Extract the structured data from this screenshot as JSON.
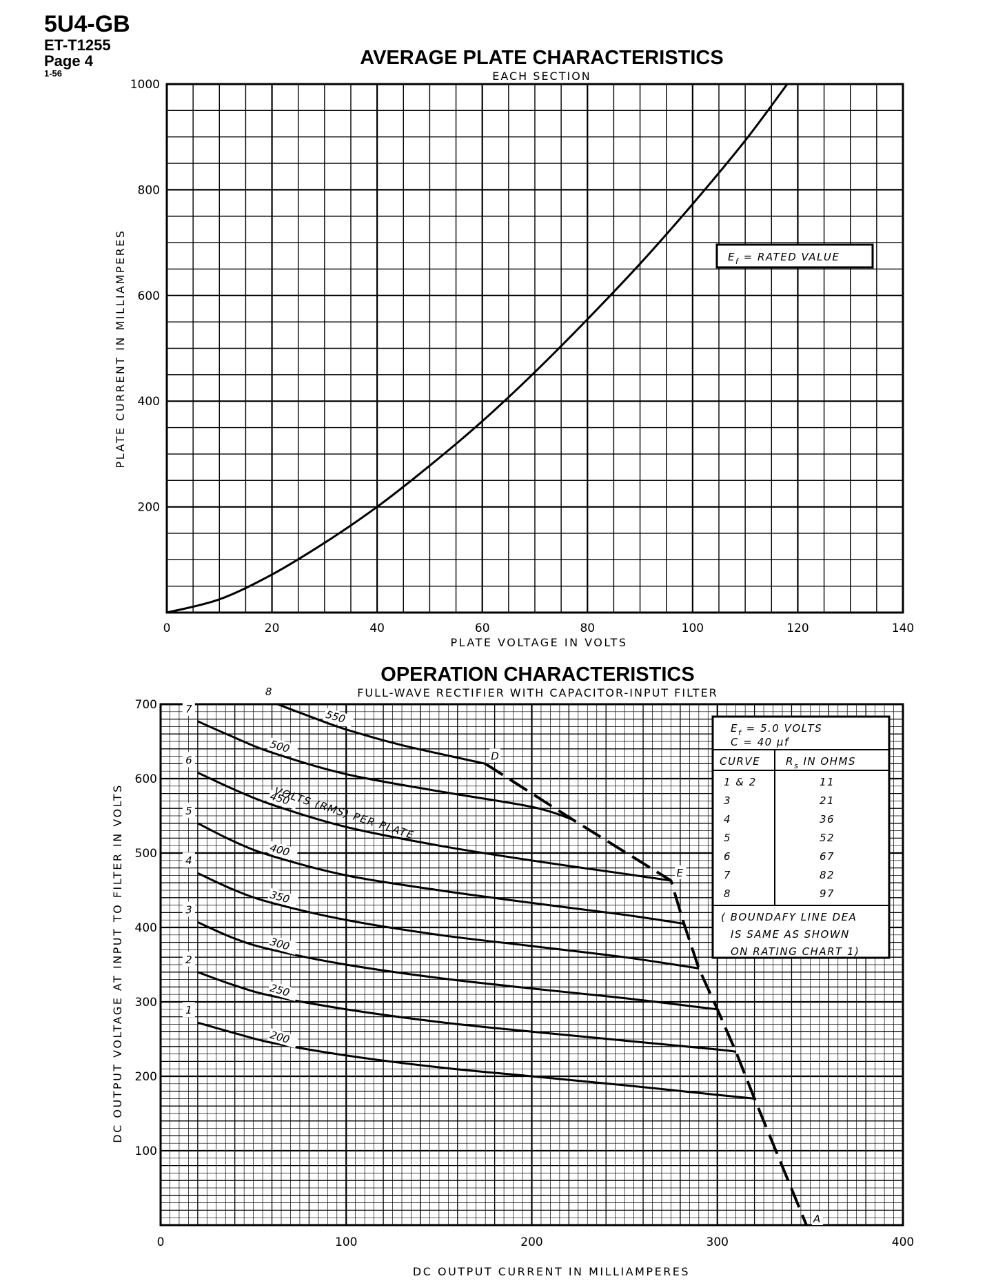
{
  "header": {
    "model": "5U4-GB",
    "code": "ET-T1255",
    "page": "Page 4",
    "date": "1-56"
  },
  "chart_data": [
    {
      "type": "line",
      "title": "AVERAGE PLATE CHARACTERISTICS",
      "subtitle": "EACH SECTION",
      "xlabel": "PLATE VOLTAGE IN VOLTS",
      "ylabel": "PLATE CURRENT IN MILLIAMPERES",
      "xlim": [
        0,
        140
      ],
      "ylim": [
        0,
        1000
      ],
      "xticks": [
        0,
        20,
        40,
        60,
        80,
        100,
        120,
        140
      ],
      "yticks": [
        200,
        400,
        600,
        800,
        1000
      ],
      "grid": true,
      "annotation": {
        "sym": "E",
        "sub": "f",
        "text": " = RATED VALUE"
      },
      "series": [
        {
          "name": "plate-current",
          "x": [
            0,
            10,
            20,
            30,
            40,
            50,
            60,
            70,
            80,
            90,
            100,
            110,
            118
          ],
          "y": [
            0,
            25,
            72,
            132,
            200,
            278,
            362,
            455,
            555,
            660,
            773,
            893,
            1000
          ]
        }
      ]
    },
    {
      "type": "line",
      "title": "OPERATION CHARACTERISTICS",
      "subtitle": "FULL-WAVE RECTIFIER WITH CAPACITOR-INPUT FILTER",
      "xlabel": "DC OUTPUT CURRENT IN MILLIAMPERES",
      "ylabel": "DC OUTPUT VOLTAGE AT INPUT TO FILTER IN VOLTS",
      "xlim": [
        0,
        400
      ],
      "ylim": [
        0,
        700
      ],
      "xticks": [
        0,
        100,
        200,
        300,
        400
      ],
      "yticks": [
        100,
        200,
        300,
        400,
        500,
        600,
        700
      ],
      "grid": true,
      "series": [
        {
          "name": "1",
          "rms_label": "200",
          "x": [
            20,
            40,
            60,
            100,
            150,
            200,
            250,
            300,
            320
          ],
          "y": [
            272,
            258,
            245,
            228,
            212,
            200,
            188,
            175,
            170
          ]
        },
        {
          "name": "2",
          "rms_label": "250",
          "x": [
            20,
            40,
            60,
            100,
            150,
            200,
            250,
            300,
            310
          ],
          "y": [
            340,
            322,
            308,
            290,
            273,
            260,
            248,
            236,
            233
          ]
        },
        {
          "name": "3",
          "rms_label": "300",
          "x": [
            20,
            40,
            60,
            100,
            150,
            200,
            250,
            290,
            300
          ],
          "y": [
            407,
            385,
            370,
            350,
            332,
            318,
            305,
            293,
            290
          ]
        },
        {
          "name": "4",
          "rms_label": "350",
          "x": [
            20,
            40,
            60,
            100,
            150,
            200,
            250,
            290
          ],
          "y": [
            473,
            450,
            433,
            410,
            390,
            375,
            360,
            345
          ]
        },
        {
          "name": "5",
          "rms_label": "400",
          "x": [
            20,
            40,
            60,
            100,
            150,
            200,
            250,
            282
          ],
          "y": [
            540,
            515,
            496,
            470,
            450,
            433,
            417,
            405
          ]
        },
        {
          "name": "6",
          "rms_label": "450",
          "x": [
            20,
            40,
            60,
            100,
            150,
            200,
            250,
            275
          ],
          "y": [
            608,
            585,
            565,
            535,
            510,
            490,
            472,
            463
          ]
        },
        {
          "name": "7",
          "rms_label": "500",
          "x": [
            20,
            40,
            60,
            100,
            150,
            200,
            222
          ],
          "y": [
            677,
            655,
            635,
            606,
            583,
            562,
            545
          ]
        },
        {
          "name": "8",
          "rms_label": "550",
          "x": [
            63,
            80,
            100,
            130,
            175
          ],
          "y": [
            700,
            684,
            666,
            645,
            620
          ]
        }
      ],
      "rms_caption": "VOLTS (RMS) PER PLATE",
      "boundary": {
        "style": "dashed",
        "x": [
          175,
          222,
          275,
          282,
          290,
          300,
          310,
          320,
          348
        ],
        "y": [
          620,
          545,
          463,
          405,
          345,
          290,
          233,
          170,
          0
        ],
        "points": [
          {
            "label": "D",
            "x": 175,
            "y": 620
          },
          {
            "label": "E",
            "x": 275,
            "y": 463
          },
          {
            "label": "A",
            "x": 348,
            "y": 0
          }
        ]
      },
      "legend": {
        "ef": {
          "sym": "E",
          "sub": "f",
          "text": " = 5.0 VOLTS"
        },
        "cap": {
          "text": "C = 40 μf"
        },
        "col_curve": "CURVE",
        "col_rs": {
          "sym": "R",
          "sub": "s",
          "text": " IN OHMS"
        },
        "rows": [
          {
            "curve": "1 & 2",
            "ohms": "11"
          },
          {
            "curve": "3",
            "ohms": "21"
          },
          {
            "curve": "4",
            "ohms": "36"
          },
          {
            "curve": "5",
            "ohms": "52"
          },
          {
            "curve": "6",
            "ohms": "67"
          },
          {
            "curve": "7",
            "ohms": "82"
          },
          {
            "curve": "8",
            "ohms": "97"
          }
        ],
        "note": [
          "( BOUNDAFY LINE DEA",
          "IS SAME AS SHOWN",
          "ON RATING CHART 1)"
        ]
      }
    }
  ]
}
